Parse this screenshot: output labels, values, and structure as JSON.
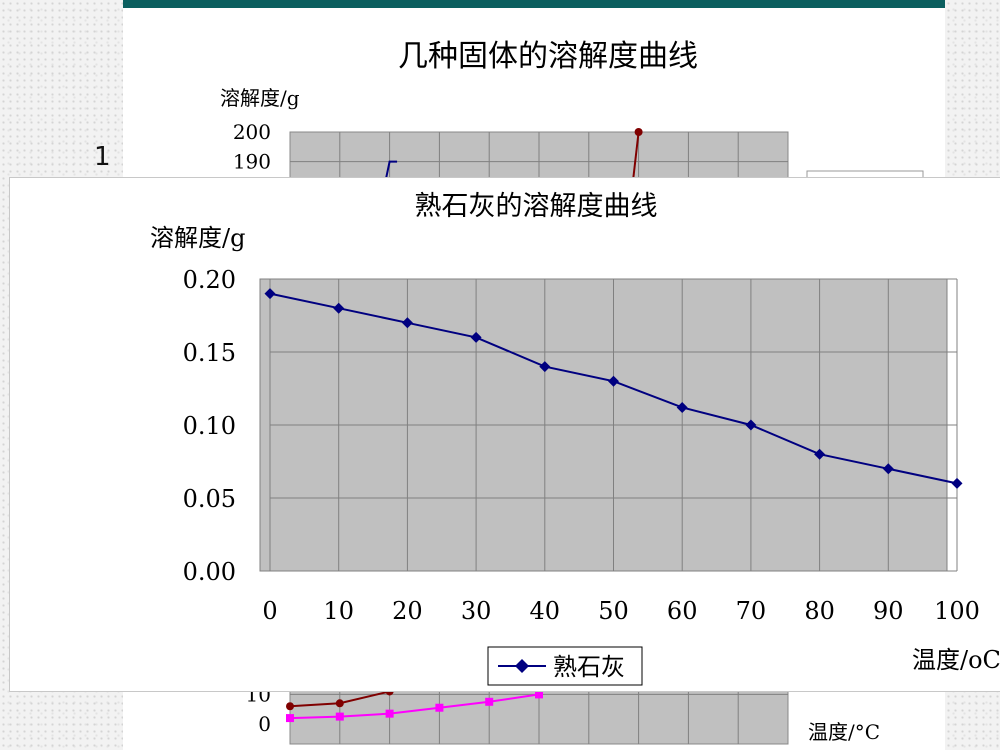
{
  "slide_number": "1",
  "colors": {
    "teal_frame": "#0b5f5f",
    "plot_bg": "#c0c0c0",
    "series_front": "#000080",
    "series_back_red": "#800000",
    "series_back_magenta": "#ff00ff"
  },
  "chart_data": [
    {
      "type": "line",
      "title": "熟石灰的溶解度曲线",
      "ylabel": "溶解度/g",
      "xlabel": "温度/oC",
      "x": [
        0,
        10,
        20,
        30,
        40,
        50,
        60,
        70,
        80,
        90,
        100
      ],
      "x_tick_labels": [
        "0",
        "10",
        "20",
        "30",
        "40",
        "50",
        "60",
        "70",
        "80",
        "90",
        "100"
      ],
      "y_tick_labels": [
        "0.00",
        "0.05",
        "0.10",
        "0.15",
        "0.20"
      ],
      "xlim": [
        0,
        100
      ],
      "ylim": [
        0,
        0.2
      ],
      "grid": true,
      "legend": "bottom",
      "series": [
        {
          "name": "熟石灰",
          "marker": "diamond",
          "values": [
            0.19,
            0.18,
            0.17,
            0.16,
            0.14,
            0.13,
            0.112,
            0.1,
            0.08,
            0.07,
            0.06
          ]
        }
      ]
    },
    {
      "type": "line",
      "title": "几种固体的溶解度曲线",
      "ylabel": "溶解度/g",
      "xlabel": "温度/°C",
      "y_tick_labels_visible": [
        "200",
        "190",
        "10",
        "0"
      ],
      "ylim": [
        0,
        200
      ],
      "grid": true,
      "series": [
        {
          "color": "#000080",
          "visible_values": [
            [
              20,
              190
            ]
          ]
        },
        {
          "color": "#800000",
          "visible_values": [
            [
              0,
              6
            ],
            [
              10,
              7
            ],
            [
              20,
              11
            ],
            [
              70,
              200
            ]
          ]
        },
        {
          "color": "#ff00ff",
          "visible_values": [
            [
              0,
              2
            ],
            [
              10,
              2.5
            ],
            [
              20,
              3.5
            ],
            [
              30,
              5.5
            ],
            [
              40,
              7.5
            ],
            [
              50,
              10
            ]
          ]
        }
      ]
    }
  ]
}
